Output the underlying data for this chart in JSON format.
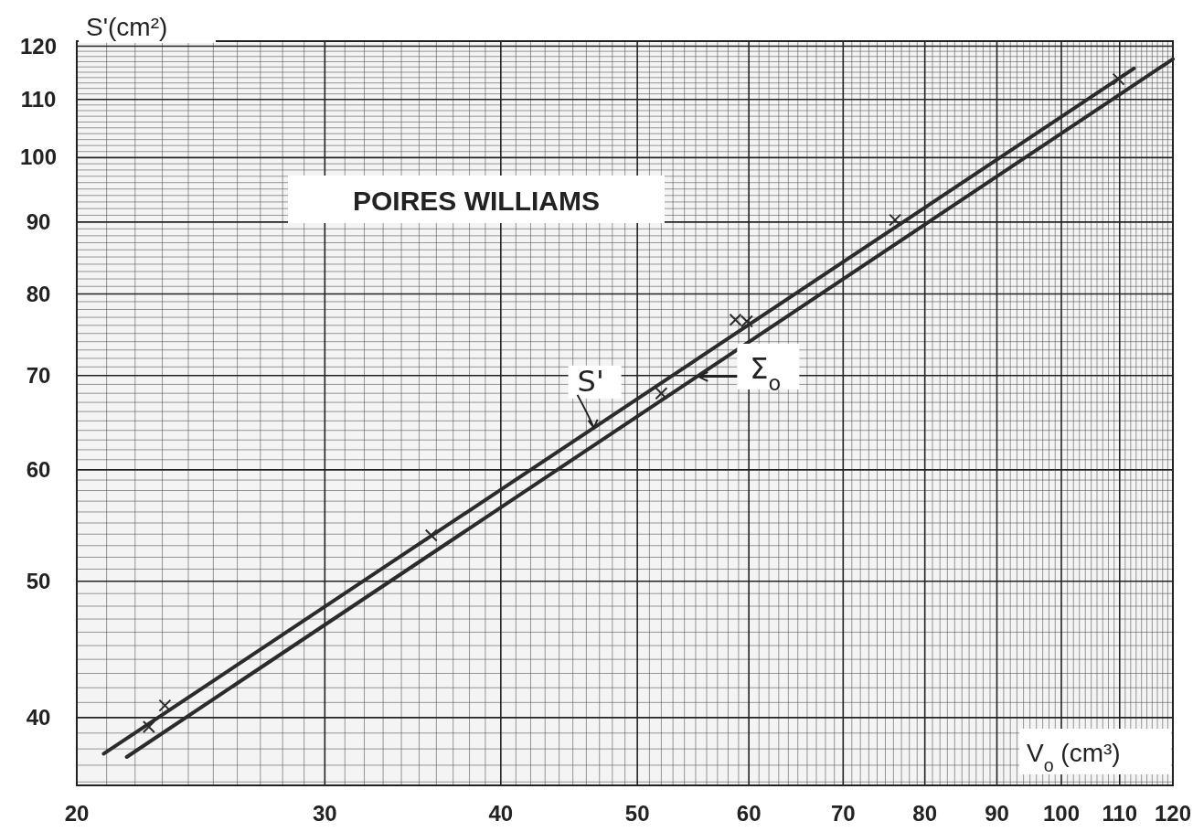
{
  "chart_data": {
    "type": "line",
    "title": "POIRES WILLIAMS",
    "xlabel": "V$_{o}$ (cm³)",
    "ylabel": "S'(cm²)",
    "log": "xy",
    "grid": true,
    "xlim": [
      20,
      120
    ],
    "xticks": [
      20,
      30,
      40,
      50,
      60,
      70,
      80,
      90,
      100,
      110,
      120
    ],
    "ylim": [
      35.8,
      121
    ],
    "yticks": [
      40,
      50,
      60,
      70,
      80,
      90,
      100,
      110,
      120
    ],
    "series": [
      {
        "name": "S'",
        "color": "#2b2b2b",
        "x": [
          20.9,
          112.6
        ],
        "values": [
          37.7,
          115.7
        ],
        "marker": "none"
      },
      {
        "name": "Σ$_{o}$",
        "color": "#2b2b2b",
        "x": [
          21.7,
          120
        ],
        "values": [
          37.5,
          117.5
        ],
        "marker": "none"
      },
      {
        "type": "scatter",
        "color": "#2b2b2b",
        "marker": "cross",
        "x": [
          22.5,
          23.1,
          35.7,
          52.0,
          58.7,
          59.8,
          76.2,
          109.8
        ],
        "values": [
          39.4,
          40.8,
          53.9,
          68.0,
          76.7,
          76.5,
          90.3,
          113.7
        ]
      }
    ]
  }
}
